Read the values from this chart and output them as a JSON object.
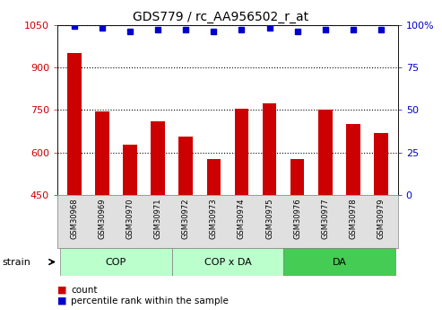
{
  "title": "GDS779 / rc_AA956502_r_at",
  "categories": [
    "GSM30968",
    "GSM30969",
    "GSM30970",
    "GSM30971",
    "GSM30972",
    "GSM30973",
    "GSM30974",
    "GSM30975",
    "GSM30976",
    "GSM30977",
    "GSM30978",
    "GSM30979"
  ],
  "bar_values": [
    950,
    745,
    628,
    710,
    658,
    578,
    755,
    775,
    578,
    750,
    700,
    668
  ],
  "percentile_values": [
    99,
    98,
    96,
    97,
    97,
    96,
    97,
    98,
    96,
    97,
    97,
    97
  ],
  "bar_color": "#cc0000",
  "dot_color": "#0000cc",
  "ylim_left": [
    450,
    1050
  ],
  "ylim_right": [
    0,
    100
  ],
  "yticks_left": [
    450,
    600,
    750,
    900,
    1050
  ],
  "yticks_right": [
    0,
    25,
    50,
    75,
    100
  ],
  "group_configs": [
    {
      "label": "COP",
      "xstart": -0.5,
      "xend": 3.5,
      "color": "#bbffcc"
    },
    {
      "label": "COP x DA",
      "xstart": 3.5,
      "xend": 7.5,
      "color": "#bbffcc"
    },
    {
      "label": "DA",
      "xstart": 7.5,
      "xend": 11.5,
      "color": "#44cc55"
    }
  ],
  "bg_color": "#e0e0e0",
  "strain_label": "strain",
  "legend_count_label": "count",
  "legend_percentile_label": "percentile rank within the sample"
}
